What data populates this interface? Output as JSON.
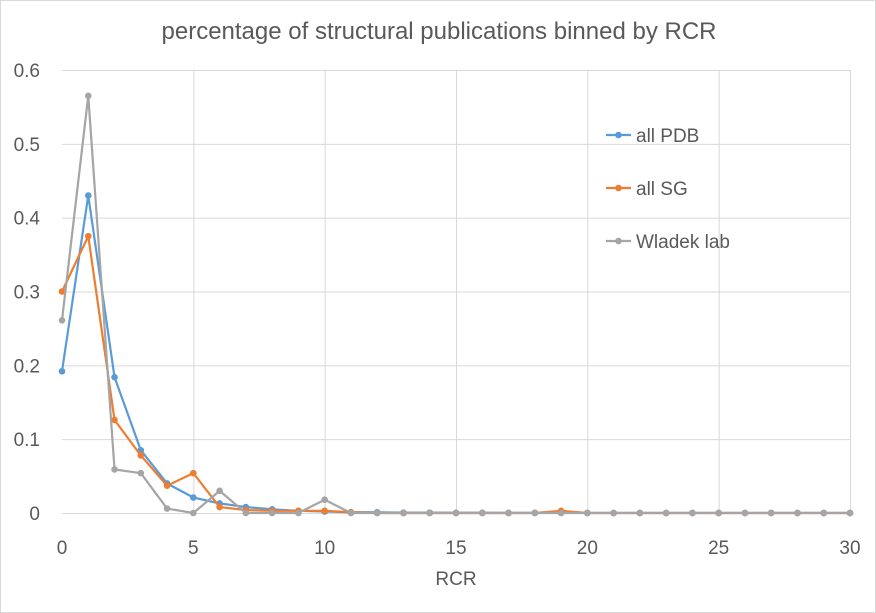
{
  "chart_data": {
    "type": "line",
    "title": "percentage of structural publications binned by RCR",
    "xlabel": "RCR",
    "ylabel": "",
    "xlim": [
      0,
      30
    ],
    "ylim": [
      0,
      0.6
    ],
    "x_ticks": [
      0,
      5,
      10,
      15,
      20,
      25,
      30
    ],
    "y_ticks": [
      0,
      0.1,
      0.2,
      0.3,
      0.4,
      0.5,
      0.6
    ],
    "x_tick_labels": [
      "0",
      "5",
      "10",
      "15",
      "20",
      "25",
      "30"
    ],
    "y_tick_labels": [
      "0",
      "0.1",
      "0.2",
      "0.3",
      "0.4",
      "0.5",
      "0.6"
    ],
    "grid": true,
    "legend_position": "right",
    "x": [
      0,
      1,
      2,
      3,
      4,
      5,
      6,
      7,
      8,
      9,
      10,
      11,
      12,
      13,
      14,
      15,
      16,
      17,
      18,
      19,
      20,
      21,
      22,
      23,
      24,
      25,
      26,
      27,
      28,
      29,
      30
    ],
    "series": [
      {
        "name": "all PDB",
        "color": "#5b9bd5",
        "values": [
          0.192,
          0.43,
          0.184,
          0.085,
          0.04,
          0.021,
          0.013,
          0.008,
          0.005,
          0.003,
          0.002,
          0.001,
          0.001,
          0.0005,
          0.0005,
          0.0003,
          0.0003,
          0.0002,
          0.0002,
          0.0002,
          0.0001,
          0.0001,
          0.0001,
          0.0001,
          0.0001,
          0.0001,
          0.0001,
          0.0001,
          0.0001,
          0.0001,
          0.0001
        ]
      },
      {
        "name": "all SG",
        "color": "#ed7d31",
        "values": [
          0.3,
          0.375,
          0.126,
          0.078,
          0.037,
          0.054,
          0.008,
          0.004,
          0.003,
          0.003,
          0.003,
          0.001,
          0,
          0,
          0,
          0,
          0,
          0,
          0,
          0.003,
          0,
          0,
          0,
          0,
          0,
          0,
          0,
          0,
          0,
          0,
          0
        ]
      },
      {
        "name": "Wladek lab",
        "color": "#a5a5a5",
        "values": [
          0.261,
          0.565,
          0.059,
          0.054,
          0.006,
          0,
          0.03,
          0,
          0,
          0,
          0.018,
          0,
          0,
          0,
          0,
          0,
          0,
          0,
          0,
          0,
          0,
          0,
          0,
          0,
          0,
          0,
          0,
          0,
          0,
          0,
          0
        ]
      }
    ]
  }
}
